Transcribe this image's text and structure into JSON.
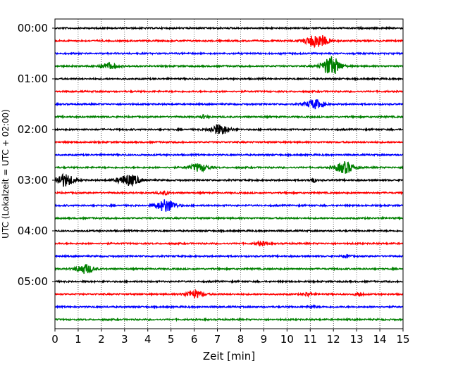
{
  "chart_data": {
    "type": "line",
    "subtype": "helicorder-seismogram",
    "xlabel": "Zeit  [min]",
    "ylabel": "UTC (Lokalzeit = UTC + 02:00)",
    "xlim": [
      0,
      15
    ],
    "x_ticks": [
      "0",
      "1",
      "2",
      "3",
      "4",
      "5",
      "6",
      "7",
      "8",
      "9",
      "10",
      "11",
      "12",
      "13",
      "14",
      "15"
    ],
    "y_tick_labels": [
      "00:00",
      "01:00",
      "02:00",
      "03:00",
      "04:00",
      "05:00"
    ],
    "y_tick_rows": [
      0,
      4,
      8,
      12,
      16,
      20
    ],
    "grid": {
      "vertical": true,
      "style": "dotted"
    },
    "row_minutes": 15,
    "trace_colors": [
      "#000000",
      "#ff0000",
      "#0000ff",
      "#008000"
    ],
    "rows": [
      {
        "start": "00:00",
        "events": []
      },
      {
        "start": "00:15",
        "events": [
          {
            "t": 11.3,
            "amp": 1.0,
            "dur": 0.6
          }
        ]
      },
      {
        "start": "00:30",
        "events": []
      },
      {
        "start": "00:45",
        "events": [
          {
            "t": 2.3,
            "amp": 0.45,
            "dur": 0.5
          },
          {
            "t": 11.9,
            "amp": 1.5,
            "dur": 0.5
          }
        ]
      },
      {
        "start": "01:00",
        "events": []
      },
      {
        "start": "01:15",
        "events": []
      },
      {
        "start": "01:30",
        "events": [
          {
            "t": 11.2,
            "amp": 0.7,
            "dur": 0.5
          }
        ]
      },
      {
        "start": "01:45",
        "events": [
          {
            "t": 6.4,
            "amp": 0.25,
            "dur": 0.2
          }
        ]
      },
      {
        "start": "02:00",
        "events": [
          {
            "t": 7.1,
            "amp": 0.8,
            "dur": 0.5
          }
        ]
      },
      {
        "start": "02:15",
        "events": []
      },
      {
        "start": "02:30",
        "events": []
      },
      {
        "start": "02:45",
        "events": [
          {
            "t": 6.2,
            "amp": 0.6,
            "dur": 0.5
          },
          {
            "t": 12.5,
            "amp": 0.9,
            "dur": 0.5
          }
        ]
      },
      {
        "start": "03:00",
        "events": [
          {
            "t": 0.4,
            "amp": 1.0,
            "dur": 0.5
          },
          {
            "t": 3.2,
            "amp": 0.85,
            "dur": 0.6
          },
          {
            "t": 11.1,
            "amp": 0.35,
            "dur": 0.2
          }
        ]
      },
      {
        "start": "03:15",
        "events": [
          {
            "t": 4.7,
            "amp": 0.25,
            "dur": 0.3
          }
        ]
      },
      {
        "start": "03:30",
        "events": [
          {
            "t": 4.8,
            "amp": 1.0,
            "dur": 0.5
          }
        ]
      },
      {
        "start": "03:45",
        "events": []
      },
      {
        "start": "04:00",
        "events": []
      },
      {
        "start": "04:15",
        "events": [
          {
            "t": 8.9,
            "amp": 0.3,
            "dur": 0.3
          }
        ]
      },
      {
        "start": "04:30",
        "events": [
          {
            "t": 12.6,
            "amp": 0.25,
            "dur": 0.2
          }
        ]
      },
      {
        "start": "04:45",
        "events": [
          {
            "t": 1.3,
            "amp": 0.7,
            "dur": 0.5
          }
        ]
      },
      {
        "start": "05:00",
        "events": []
      },
      {
        "start": "05:15",
        "events": [
          {
            "t": 6.0,
            "amp": 0.6,
            "dur": 0.5
          },
          {
            "t": 10.9,
            "amp": 0.3,
            "dur": 0.2
          },
          {
            "t": 13.1,
            "amp": 0.35,
            "dur": 0.2
          }
        ]
      },
      {
        "start": "05:30",
        "events": [
          {
            "t": 11.1,
            "amp": 0.2,
            "dur": 0.2
          }
        ]
      },
      {
        "start": "05:45",
        "events": []
      }
    ]
  }
}
